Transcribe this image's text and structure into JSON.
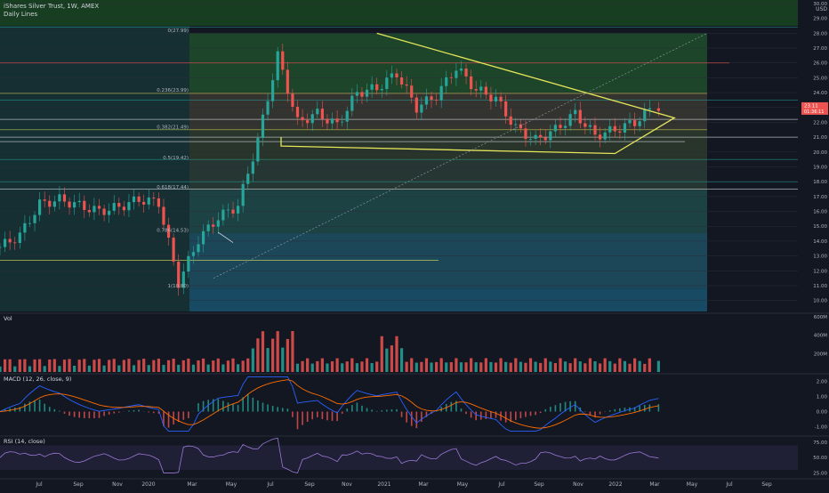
{
  "header": {
    "symbol_line": "iShares Silver Trust, 1W, AMEX",
    "indicator_line": "Daily Lines"
  },
  "theme": {
    "background": "#131722",
    "bull": "#26a69a",
    "bear": "#ef5350",
    "trendline": "#e6e65a",
    "macd_line": "#2962ff",
    "signal_line": "#ff6d00",
    "rsi_line": "#9c7ad6",
    "price_tag_bg": "#ef5350"
  },
  "price_axis": {
    "unit": "USD",
    "ticks": [
      "30.00",
      "29.00",
      "28.00",
      "27.00",
      "26.00",
      "25.00",
      "24.00",
      "23.00",
      "22.00",
      "21.00",
      "20.00",
      "19.00",
      "18.00",
      "17.00",
      "16.00",
      "15.00",
      "14.00",
      "13.00",
      "12.00",
      "11.00",
      "10.00"
    ]
  },
  "last_price": {
    "value": "23.11",
    "countdown": "01:36:11"
  },
  "x_axis_labels": [
    "Jul",
    "Sep",
    "Nov",
    "2020",
    "Mar",
    "May",
    "Jul",
    "Sep",
    "Nov",
    "2021",
    "Mar",
    "May",
    "Jul",
    "Sep",
    "Nov",
    "2022",
    "Mar",
    "May",
    "Jul",
    "Sep"
  ],
  "fibonacci": [
    {
      "label": "0(27.99)",
      "price": 27.99
    },
    {
      "label": "0.236(23.99)",
      "price": 23.99
    },
    {
      "label": "0.382(21.49)",
      "price": 21.49
    },
    {
      "label": "0.5(19.42)",
      "price": 19.42
    },
    {
      "label": "0.618(17.44)",
      "price": 17.44
    },
    {
      "label": "0.786(14.53)",
      "price": 14.53
    },
    {
      "label": "1(10.80)",
      "price": 10.8
    }
  ],
  "panes": {
    "volume": {
      "label": "Vol",
      "ticks": [
        "600M",
        "400M",
        "200M"
      ]
    },
    "macd": {
      "label": "MACD (12, 26, close, 9)",
      "ticks": [
        "2.00",
        "1.00",
        "0.00",
        "-1.00"
      ]
    },
    "rsi": {
      "label": "RSI (14, close)",
      "ticks": [
        "75.00",
        "50.00",
        "25.00"
      ]
    }
  },
  "chart_data": [
    {
      "type": "candlestick",
      "title": "iShares Silver Trust, 1W, AMEX",
      "x_range": [
        "2019-06",
        "2022-10"
      ],
      "y_range": [
        9.5,
        30.5
      ],
      "x_ticks": [
        "Jul",
        "Sep",
        "Nov",
        "2020",
        "Mar",
        "May",
        "Jul",
        "Sep",
        "Nov",
        "2021",
        "Mar",
        "May",
        "Jul",
        "Sep",
        "Nov",
        "2022",
        "Mar",
        "May",
        "Jul",
        "Sep"
      ],
      "approx_weekly_close_path": [
        {
          "month": "2019-06",
          "close": 13.6
        },
        {
          "month": "2019-07",
          "close": 14.4
        },
        {
          "month": "2019-08",
          "close": 16.5
        },
        {
          "month": "2019-09",
          "close": 16.8
        },
        {
          "month": "2019-10",
          "close": 16.4
        },
        {
          "month": "2019-11",
          "close": 16.0
        },
        {
          "month": "2019-12",
          "close": 16.3
        },
        {
          "month": "2020-01",
          "close": 16.8
        },
        {
          "month": "2020-02",
          "close": 16.6
        },
        {
          "month": "2020-03",
          "close": 11.2
        },
        {
          "month": "2020-04",
          "close": 14.1
        },
        {
          "month": "2020-05",
          "close": 15.6
        },
        {
          "month": "2020-06",
          "close": 16.4
        },
        {
          "month": "2020-07",
          "close": 20.8
        },
        {
          "month": "2020-08",
          "close": 26.5
        },
        {
          "month": "2020-09",
          "close": 22.0
        },
        {
          "month": "2020-10",
          "close": 22.6
        },
        {
          "month": "2020-11",
          "close": 21.8
        },
        {
          "month": "2020-12",
          "close": 24.0
        },
        {
          "month": "2021-01",
          "close": 24.3
        },
        {
          "month": "2021-02",
          "close": 25.3
        },
        {
          "month": "2021-03",
          "close": 23.0
        },
        {
          "month": "2021-04",
          "close": 23.8
        },
        {
          "month": "2021-05",
          "close": 25.7
        },
        {
          "month": "2021-06",
          "close": 24.2
        },
        {
          "month": "2021-07",
          "close": 23.6
        },
        {
          "month": "2021-08",
          "close": 21.6
        },
        {
          "month": "2021-09",
          "close": 20.8
        },
        {
          "month": "2021-10",
          "close": 21.5
        },
        {
          "month": "2021-11",
          "close": 22.6
        },
        {
          "month": "2021-12",
          "close": 21.1
        },
        {
          "month": "2022-01",
          "close": 21.5
        },
        {
          "month": "2022-02",
          "close": 22.0
        },
        {
          "month": "2022-03",
          "close": 23.1
        }
      ],
      "annotations": [
        "Fibonacci retracement 0–1",
        "symmetrical triangle",
        "horizontal support/resistance lines"
      ],
      "last": 23.11
    },
    {
      "type": "bar",
      "title": "Vol",
      "y_range": [
        "0",
        "600M"
      ]
    },
    {
      "type": "line",
      "title": "MACD (12, 26, close, 9)",
      "y_range": [
        -1.5,
        2.5
      ]
    },
    {
      "type": "line",
      "title": "RSI (14, close)",
      "y_range": [
        20,
        85
      ]
    }
  ]
}
